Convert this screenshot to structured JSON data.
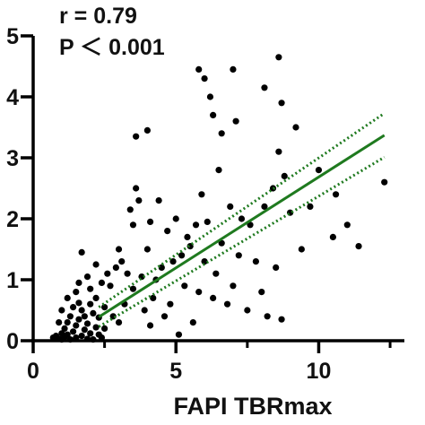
{
  "chart_data": {
    "type": "scatter",
    "xlabel": "FAPI TBRmax",
    "ylabel": "",
    "xlim": [
      0,
      13
    ],
    "ylim": [
      0,
      5
    ],
    "x_ticks": [
      0,
      5,
      10
    ],
    "y_ticks": [
      0,
      1,
      2,
      3,
      4,
      5
    ],
    "grid": false,
    "annotations": [
      "r = 0.79",
      "P ＜ 0.001"
    ],
    "colors": {
      "points": "#000000",
      "fit": "#1f7a1f",
      "axis": "#000000"
    },
    "fit_line": {
      "x": [
        2.3,
        12.3
      ],
      "y": [
        0.39,
        3.37
      ]
    },
    "ci_upper": {
      "x": [
        2.3,
        12.3
      ],
      "y": [
        0.55,
        3.73
      ]
    },
    "ci_lower": {
      "x": [
        2.3,
        12.3
      ],
      "y": [
        0.23,
        3.01
      ]
    },
    "points": [
      {
        "x": 0.7,
        "y": 0.05
      },
      {
        "x": 0.8,
        "y": 0.08
      },
      {
        "x": 0.9,
        "y": 0.03
      },
      {
        "x": 1.0,
        "y": 0.12
      },
      {
        "x": 1.0,
        "y": 0.02
      },
      {
        "x": 1.1,
        "y": 0.2
      },
      {
        "x": 1.1,
        "y": 0.06
      },
      {
        "x": 1.2,
        "y": 0.3
      },
      {
        "x": 1.2,
        "y": 0.1
      },
      {
        "x": 1.3,
        "y": 0.02
      },
      {
        "x": 1.3,
        "y": 0.4
      },
      {
        "x": 1.4,
        "y": 0.15
      },
      {
        "x": 1.4,
        "y": 0.55
      },
      {
        "x": 1.5,
        "y": 0.05
      },
      {
        "x": 1.5,
        "y": 0.25
      },
      {
        "x": 1.6,
        "y": 0.62
      },
      {
        "x": 1.6,
        "y": 0.35
      },
      {
        "x": 1.7,
        "y": 0.08
      },
      {
        "x": 1.7,
        "y": 0.5
      },
      {
        "x": 1.8,
        "y": 0.18
      },
      {
        "x": 1.8,
        "y": 0.4
      },
      {
        "x": 1.9,
        "y": 0.03
      },
      {
        "x": 1.9,
        "y": 0.28
      },
      {
        "x": 2.0,
        "y": 0.6
      },
      {
        "x": 2.0,
        "y": 0.12
      },
      {
        "x": 2.1,
        "y": 0.45
      },
      {
        "x": 2.1,
        "y": 0.02
      },
      {
        "x": 2.2,
        "y": 0.22
      },
      {
        "x": 2.2,
        "y": 0.7
      },
      {
        "x": 2.3,
        "y": 0.1
      },
      {
        "x": 2.3,
        "y": 0.38
      },
      {
        "x": 2.4,
        "y": 0.05
      },
      {
        "x": 2.5,
        "y": 0.55
      },
      {
        "x": 2.5,
        "y": 0.2
      },
      {
        "x": 1.7,
        "y": 1.45
      },
      {
        "x": 1.2,
        "y": 0.7
      },
      {
        "x": 1.5,
        "y": 0.8
      },
      {
        "x": 2.0,
        "y": 0.85
      },
      {
        "x": 2.7,
        "y": 0.9
      },
      {
        "x": 2.8,
        "y": 0.4
      },
      {
        "x": 2.9,
        "y": 1.2
      },
      {
        "x": 3.0,
        "y": 0.3
      },
      {
        "x": 3.1,
        "y": 1.3
      },
      {
        "x": 3.2,
        "y": 0.6
      },
      {
        "x": 3.3,
        "y": 1.1
      },
      {
        "x": 3.4,
        "y": 2.15
      },
      {
        "x": 3.5,
        "y": 0.85
      },
      {
        "x": 3.6,
        "y": 2.5
      },
      {
        "x": 3.7,
        "y": 2.3
      },
      {
        "x": 3.8,
        "y": 1.05
      },
      {
        "x": 3.9,
        "y": 0.5
      },
      {
        "x": 4.0,
        "y": 1.5
      },
      {
        "x": 4.1,
        "y": 0.25
      },
      {
        "x": 4.2,
        "y": 0.7
      },
      {
        "x": 4.3,
        "y": 1.0
      },
      {
        "x": 4.4,
        "y": 2.3
      },
      {
        "x": 4.5,
        "y": 1.2
      },
      {
        "x": 4.6,
        "y": 0.4
      },
      {
        "x": 4.7,
        "y": 1.8
      },
      {
        "x": 4.8,
        "y": 0.6
      },
      {
        "x": 4.9,
        "y": 1.3
      },
      {
        "x": 5.0,
        "y": 2.0
      },
      {
        "x": 5.1,
        "y": 0.1
      },
      {
        "x": 5.2,
        "y": 1.4
      },
      {
        "x": 5.3,
        "y": 0.9
      },
      {
        "x": 5.4,
        "y": 1.7
      },
      {
        "x": 5.5,
        "y": 1.55
      },
      {
        "x": 5.6,
        "y": 0.3
      },
      {
        "x": 5.7,
        "y": 1.9
      },
      {
        "x": 5.8,
        "y": 0.8
      },
      {
        "x": 5.9,
        "y": 2.4
      },
      {
        "x": 6.0,
        "y": 1.3
      },
      {
        "x": 6.1,
        "y": 1.95
      },
      {
        "x": 6.3,
        "y": 0.7
      },
      {
        "x": 6.4,
        "y": 1.1
      },
      {
        "x": 6.5,
        "y": 2.8
      },
      {
        "x": 6.6,
        "y": 1.6
      },
      {
        "x": 6.8,
        "y": 0.6
      },
      {
        "x": 6.9,
        "y": 2.2
      },
      {
        "x": 7.0,
        "y": 0.9
      },
      {
        "x": 7.1,
        "y": 3.6
      },
      {
        "x": 7.2,
        "y": 1.4
      },
      {
        "x": 7.3,
        "y": 2.0
      },
      {
        "x": 7.5,
        "y": 0.5
      },
      {
        "x": 7.6,
        "y": 1.9
      },
      {
        "x": 7.8,
        "y": 1.3
      },
      {
        "x": 8.0,
        "y": 0.8
      },
      {
        "x": 8.1,
        "y": 2.2
      },
      {
        "x": 8.2,
        "y": 0.4
      },
      {
        "x": 8.4,
        "y": 2.5
      },
      {
        "x": 8.5,
        "y": 1.2
      },
      {
        "x": 8.6,
        "y": 3.1
      },
      {
        "x": 8.7,
        "y": 0.35
      },
      {
        "x": 8.8,
        "y": 2.7
      },
      {
        "x": 9.0,
        "y": 2.1
      },
      {
        "x": 9.2,
        "y": 3.5
      },
      {
        "x": 9.4,
        "y": 1.5
      },
      {
        "x": 9.7,
        "y": 2.2
      },
      {
        "x": 10.0,
        "y": 2.8
      },
      {
        "x": 10.5,
        "y": 1.7
      },
      {
        "x": 10.6,
        "y": 2.4
      },
      {
        "x": 11.0,
        "y": 1.9
      },
      {
        "x": 11.4,
        "y": 1.55
      },
      {
        "x": 12.3,
        "y": 2.6
      },
      {
        "x": 6.0,
        "y": 4.3
      },
      {
        "x": 6.2,
        "y": 4.0
      },
      {
        "x": 6.3,
        "y": 3.7
      },
      {
        "x": 7.0,
        "y": 4.45
      },
      {
        "x": 8.1,
        "y": 4.15
      },
      {
        "x": 8.6,
        "y": 4.65
      },
      {
        "x": 8.7,
        "y": 3.9
      },
      {
        "x": 5.8,
        "y": 4.45
      },
      {
        "x": 6.6,
        "y": 3.4
      },
      {
        "x": 3.6,
        "y": 3.35
      },
      {
        "x": 3.5,
        "y": 1.9
      },
      {
        "x": 2.6,
        "y": 1.1
      },
      {
        "x": 2.4,
        "y": 0.95
      },
      {
        "x": 1.9,
        "y": 1.05
      },
      {
        "x": 4.0,
        "y": 3.45
      },
      {
        "x": 4.1,
        "y": 1.95
      },
      {
        "x": 3.0,
        "y": 1.5
      },
      {
        "x": 2.2,
        "y": 1.25
      },
      {
        "x": 1.6,
        "y": 0.95
      },
      {
        "x": 1.0,
        "y": 0.5
      },
      {
        "x": 0.9,
        "y": 0.3
      }
    ]
  }
}
